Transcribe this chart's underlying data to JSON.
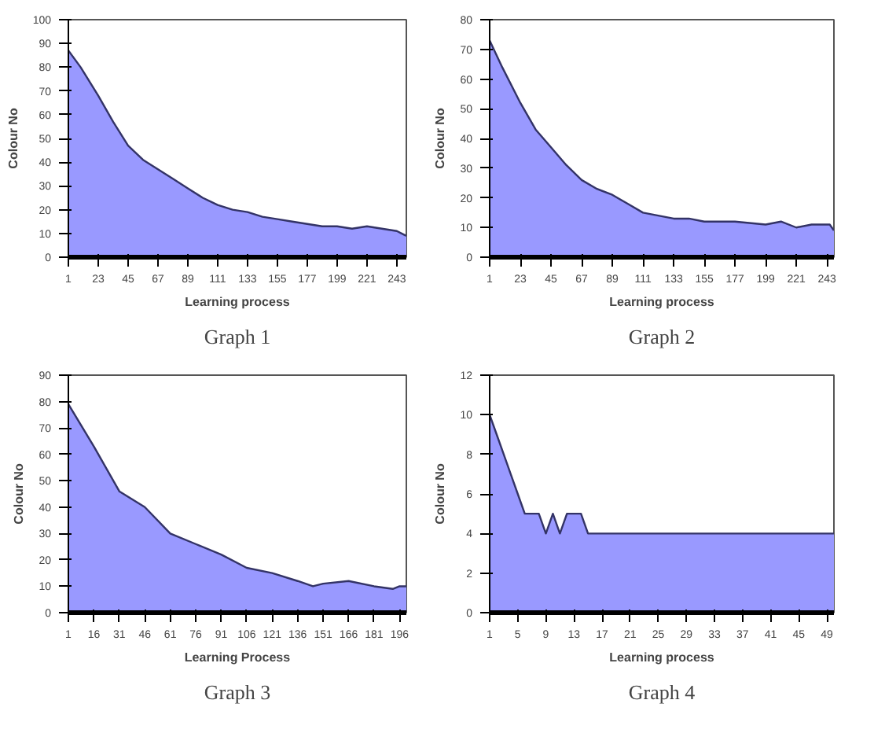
{
  "chart_data": [
    {
      "type": "area",
      "xlabel": "Learning process",
      "ylabel": "Colour No",
      "annotations": [
        "Graph 1"
      ],
      "xlim": [
        1,
        250
      ],
      "ylim": [
        0,
        100
      ],
      "xticks": [
        1,
        23,
        45,
        67,
        89,
        111,
        133,
        155,
        177,
        199,
        221,
        243
      ],
      "yticks": [
        0,
        10,
        20,
        30,
        40,
        50,
        60,
        70,
        80,
        90,
        100
      ],
      "grid": false,
      "series": [
        {
          "color": "#9999ff",
          "x": [
            1,
            10,
            23,
            34,
            45,
            56,
            67,
            78,
            89,
            100,
            111,
            122,
            133,
            144,
            155,
            166,
            177,
            188,
            199,
            210,
            221,
            232,
            243,
            250
          ],
          "values": [
            87,
            80,
            68,
            57,
            47,
            41,
            37,
            33,
            29,
            25,
            22,
            20,
            19,
            17,
            16,
            15,
            14,
            13,
            13,
            12,
            13,
            12,
            11,
            9
          ]
        }
      ]
    },
    {
      "type": "area",
      "xlabel": "Learning process",
      "ylabel": "Colour No",
      "annotations": [
        "Graph 2"
      ],
      "xlim": [
        1,
        248
      ],
      "ylim": [
        0,
        80
      ],
      "xticks": [
        1,
        23,
        45,
        67,
        89,
        111,
        133,
        155,
        177,
        199,
        221,
        243
      ],
      "yticks": [
        0,
        10,
        20,
        30,
        40,
        50,
        60,
        70,
        80
      ],
      "grid": false,
      "series": [
        {
          "color": "#9999ff",
          "x": [
            1,
            10,
            23,
            34,
            45,
            56,
            67,
            78,
            89,
            100,
            111,
            122,
            133,
            144,
            155,
            177,
            199,
            210,
            221,
            232,
            245,
            248
          ],
          "values": [
            73,
            64,
            52,
            43,
            37,
            31,
            26,
            23,
            21,
            18,
            15,
            14,
            13,
            13,
            12,
            12,
            11,
            12,
            10,
            11,
            11,
            9
          ]
        }
      ]
    },
    {
      "type": "area",
      "xlabel": "Learning Process",
      "ylabel": "Colour No",
      "annotations": [
        "Graph 3"
      ],
      "xlim": [
        1,
        200
      ],
      "ylim": [
        0,
        90
      ],
      "xticks": [
        1,
        16,
        31,
        46,
        61,
        76,
        91,
        106,
        121,
        136,
        151,
        166,
        181,
        196
      ],
      "yticks": [
        0,
        10,
        20,
        30,
        40,
        50,
        60,
        70,
        80,
        90
      ],
      "grid": false,
      "series": [
        {
          "color": "#9999ff",
          "x": [
            1,
            16,
            31,
            46,
            61,
            76,
            91,
            106,
            121,
            136,
            145,
            151,
            166,
            181,
            192,
            196,
            200
          ],
          "values": [
            79,
            63,
            46,
            40,
            30,
            26,
            22,
            17,
            15,
            12,
            10,
            11,
            12,
            10,
            9,
            10,
            10
          ]
        }
      ]
    },
    {
      "type": "area",
      "xlabel": "Learning process",
      "ylabel": "Colour No",
      "annotations": [
        "Graph 4"
      ],
      "xlim": [
        1,
        50
      ],
      "ylim": [
        0,
        12
      ],
      "xticks": [
        1,
        5,
        9,
        13,
        17,
        21,
        25,
        29,
        33,
        37,
        41,
        45,
        49
      ],
      "yticks": [
        0,
        2,
        4,
        6,
        8,
        10,
        12
      ],
      "grid": false,
      "series": [
        {
          "color": "#9999ff",
          "x": [
            1,
            2,
            3,
            4,
            5,
            6,
            7,
            8,
            9,
            10,
            11,
            12,
            13,
            14,
            15,
            16,
            50
          ],
          "values": [
            10,
            9,
            8,
            7,
            6,
            5,
            5,
            5,
            4,
            5,
            4,
            5,
            5,
            5,
            4,
            4,
            4
          ]
        }
      ]
    }
  ]
}
